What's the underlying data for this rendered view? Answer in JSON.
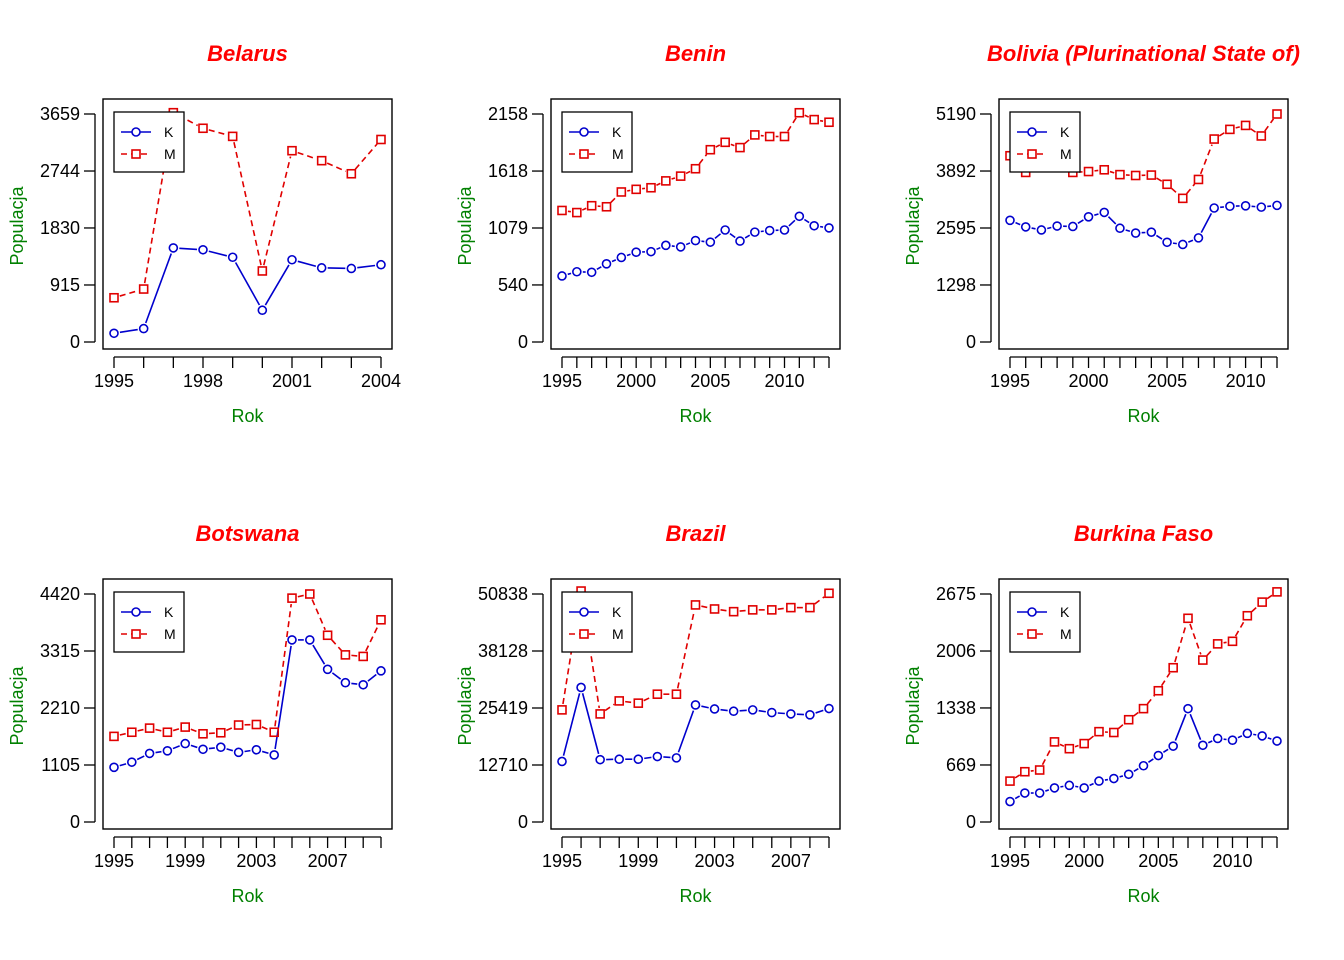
{
  "colors": {
    "title": "#ff0000",
    "axis_label": "#008000",
    "series_K": "#0000cd",
    "series_M": "#e00000"
  },
  "chart_data": [
    {
      "type": "line",
      "title": "Belarus",
      "xlabel": "Rok",
      "ylabel": "Populacja",
      "x": [
        1995,
        1996,
        1997,
        1998,
        1999,
        2000,
        2001,
        2002,
        2003,
        2004
      ],
      "xticks": [
        1995,
        1998,
        2001,
        2004
      ],
      "yticks": [
        "0",
        "915",
        "1830",
        "2744",
        "3659"
      ],
      "ylim": [
        0,
        3659
      ],
      "legend_position": "top-left",
      "series": [
        {
          "name": "K",
          "marker": "circle",
          "line": "solid",
          "values": [
            140,
            215,
            1510,
            1480,
            1360,
            510,
            1320,
            1190,
            1180,
            1240
          ]
        },
        {
          "name": "M",
          "marker": "square",
          "line": "dashed",
          "values": [
            710,
            850,
            3680,
            3430,
            3300,
            1140,
            3070,
            2910,
            2700,
            3250
          ]
        }
      ]
    },
    {
      "type": "line",
      "title": "Benin",
      "xlabel": "Rok",
      "ylabel": "Populacja",
      "x": [
        1995,
        1996,
        1997,
        1998,
        1999,
        2000,
        2001,
        2002,
        2003,
        2004,
        2005,
        2006,
        2007,
        2008,
        2009,
        2010,
        2011,
        2012,
        2013
      ],
      "xticks": [
        1995,
        2000,
        2005,
        2010
      ],
      "yticks": [
        "0",
        "540",
        "1079",
        "1618",
        "2158"
      ],
      "ylim": [
        0,
        2158
      ],
      "legend_position": "top-left",
      "series": [
        {
          "name": "K",
          "marker": "circle",
          "line": "solid",
          "values": [
            625,
            665,
            660,
            740,
            800,
            850,
            855,
            915,
            900,
            960,
            945,
            1060,
            955,
            1040,
            1055,
            1060,
            1190,
            1100,
            1080
          ]
        },
        {
          "name": "M",
          "marker": "square",
          "line": "dashed",
          "values": [
            1245,
            1225,
            1290,
            1280,
            1420,
            1445,
            1460,
            1525,
            1570,
            1640,
            1820,
            1890,
            1840,
            1960,
            1945,
            1945,
            2170,
            2105,
            2080
          ]
        }
      ]
    },
    {
      "type": "line",
      "title": "Bolivia (Plurinational State of)",
      "xlabel": "Rok",
      "ylabel": "Populacja",
      "x": [
        1995,
        1996,
        1997,
        1998,
        1999,
        2000,
        2001,
        2002,
        2003,
        2004,
        2005,
        2006,
        2007,
        2008,
        2009,
        2010,
        2011,
        2012
      ],
      "xticks": [
        1995,
        2000,
        2005,
        2010
      ],
      "yticks": [
        "0",
        "1298",
        "2595",
        "3892",
        "5190"
      ],
      "ylim": [
        0,
        5190
      ],
      "legend_position": "top-left",
      "series": [
        {
          "name": "K",
          "marker": "circle",
          "line": "solid",
          "values": [
            2770,
            2620,
            2550,
            2640,
            2630,
            2850,
            2950,
            2590,
            2480,
            2500,
            2270,
            2220,
            2370,
            3050,
            3090,
            3100,
            3070,
            3110
          ]
        },
        {
          "name": "M",
          "marker": "square",
          "line": "dashed",
          "values": [
            4240,
            3860,
            4000,
            4020,
            3860,
            3880,
            3920,
            3810,
            3790,
            3800,
            3590,
            3270,
            3700,
            4620,
            4840,
            4930,
            4690,
            5190
          ]
        }
      ]
    },
    {
      "type": "line",
      "title": "Botswana",
      "xlabel": "Rok",
      "ylabel": "Populacja",
      "x": [
        1995,
        1996,
        1997,
        1998,
        1999,
        2000,
        2001,
        2002,
        2003,
        2004,
        2005,
        2006,
        2007,
        2008,
        2009,
        2010
      ],
      "xticks": [
        1995,
        1999,
        2003,
        2007
      ],
      "yticks": [
        "0",
        "1105",
        "2210",
        "3315",
        "4420"
      ],
      "ylim": [
        0,
        4420
      ],
      "legend_position": "top-left",
      "series": [
        {
          "name": "K",
          "marker": "circle",
          "line": "solid",
          "values": [
            1060,
            1160,
            1330,
            1380,
            1520,
            1410,
            1450,
            1350,
            1400,
            1300,
            3530,
            3530,
            2960,
            2700,
            2660,
            2930
          ]
        },
        {
          "name": "M",
          "marker": "square",
          "line": "dashed",
          "values": [
            1660,
            1740,
            1820,
            1740,
            1840,
            1710,
            1730,
            1880,
            1890,
            1740,
            4340,
            4420,
            3620,
            3240,
            3210,
            3920
          ]
        }
      ]
    },
    {
      "type": "line",
      "title": "Brazil",
      "xlabel": "Rok",
      "ylabel": "Populacja",
      "x": [
        1995,
        1996,
        1997,
        1998,
        1999,
        2000,
        2001,
        2002,
        2003,
        2004,
        2005,
        2006,
        2007,
        2008,
        2009
      ],
      "xticks": [
        1995,
        1999,
        2003,
        2007
      ],
      "yticks": [
        "0",
        "12710",
        "25419",
        "38128",
        "50838"
      ],
      "ylim": [
        0,
        50838
      ],
      "legend_position": "top-left",
      "series": [
        {
          "name": "K",
          "marker": "circle",
          "line": "solid",
          "values": [
            13500,
            30000,
            13900,
            14000,
            14000,
            14600,
            14300,
            26100,
            25200,
            24700,
            25000,
            24400,
            24100,
            23900,
            25300
          ]
        },
        {
          "name": "M",
          "marker": "square",
          "line": "dashed",
          "values": [
            25000,
            51500,
            24100,
            27000,
            26500,
            28500,
            28500,
            48400,
            47500,
            46900,
            47300,
            47300,
            47800,
            47800,
            51000
          ]
        }
      ]
    },
    {
      "type": "line",
      "title": "Burkina Faso",
      "xlabel": "Rok",
      "ylabel": "Populacja",
      "x": [
        1995,
        1996,
        1997,
        1998,
        1999,
        2000,
        2001,
        2002,
        2003,
        2004,
        2005,
        2006,
        2007,
        2008,
        2009,
        2010,
        2011,
        2012,
        2013
      ],
      "xticks": [
        1995,
        2000,
        2005,
        2010
      ],
      "yticks": [
        "0",
        "669",
        "1338",
        "2006",
        "2675"
      ],
      "ylim": [
        0,
        2675
      ],
      "legend_position": "top-left",
      "series": [
        {
          "name": "K",
          "marker": "circle",
          "line": "solid",
          "values": [
            240,
            340,
            340,
            400,
            430,
            400,
            480,
            510,
            560,
            660,
            780,
            890,
            1330,
            900,
            980,
            960,
            1040,
            1010,
            950
          ]
        },
        {
          "name": "M",
          "marker": "square",
          "line": "dashed",
          "values": [
            480,
            590,
            610,
            940,
            860,
            920,
            1060,
            1050,
            1200,
            1330,
            1540,
            1810,
            2390,
            1900,
            2090,
            2120,
            2420,
            2580,
            2700
          ]
        }
      ]
    }
  ]
}
